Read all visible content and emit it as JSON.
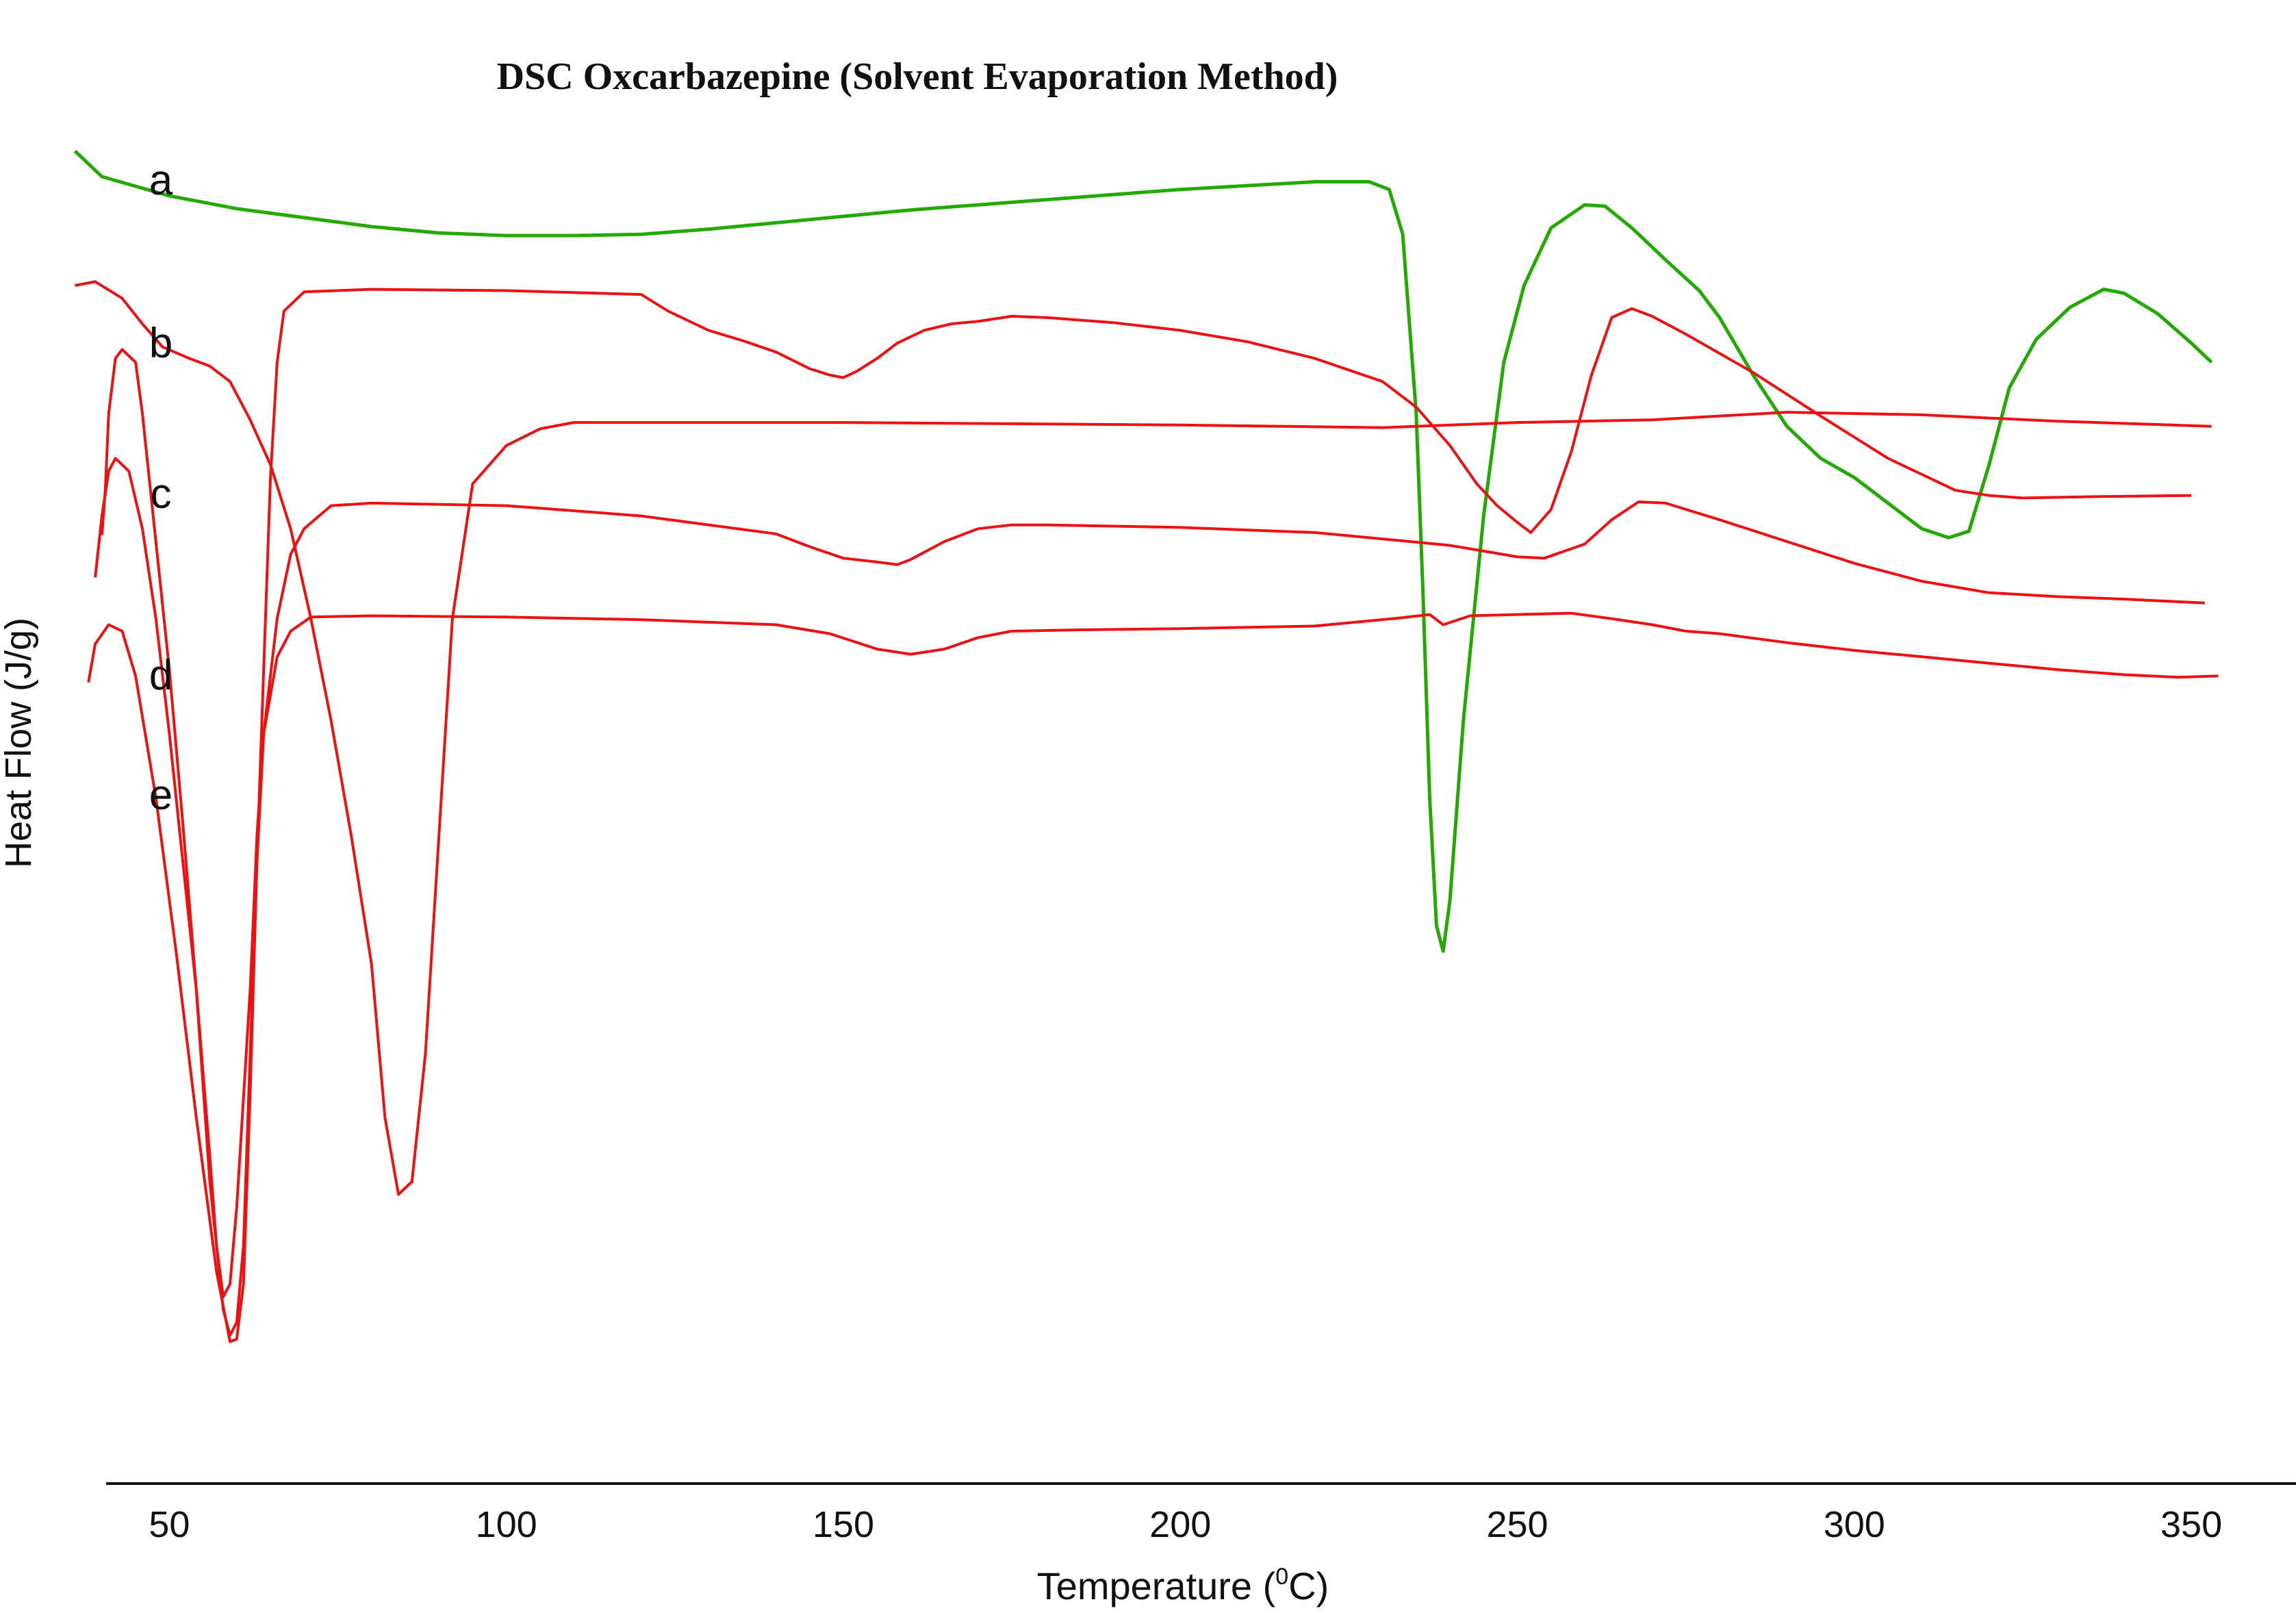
{
  "chart_data": {
    "type": "line",
    "title": "DSC Oxcarbazepine (Solvent Evaporation Method)",
    "xlabel": "Temperature (",
    "xlabel_sup": "0",
    "xlabel_end": "C)",
    "ylabel": "Heat Flow (J/g)",
    "xlim": [
      33,
      357
    ],
    "ylim": [
      0,
      100
    ],
    "x_ticks": [
      50,
      100,
      150,
      200,
      250,
      300,
      350
    ],
    "x_tick_labels": [
      "50",
      "100",
      "150",
      "200",
      "250",
      "300",
      "350"
    ],
    "grid": false,
    "legend": "none",
    "series": [
      {
        "name": "a",
        "color": "#22aa00",
        "points": [
          [
            36,
            100.5
          ],
          [
            40,
            98.5
          ],
          [
            50,
            97
          ],
          [
            60,
            96
          ],
          [
            70,
            95.3
          ],
          [
            80,
            94.6
          ],
          [
            90,
            94.1
          ],
          [
            100,
            93.9
          ],
          [
            110,
            93.9
          ],
          [
            120,
            94
          ],
          [
            130,
            94.4
          ],
          [
            140,
            94.9
          ],
          [
            150,
            95.4
          ],
          [
            160,
            95.9
          ],
          [
            170,
            96.3
          ],
          [
            180,
            96.7
          ],
          [
            190,
            97.1
          ],
          [
            200,
            97.5
          ],
          [
            210,
            97.8
          ],
          [
            220,
            98.1
          ],
          [
            228,
            98.1
          ],
          [
            231,
            97.5
          ],
          [
            233,
            94
          ],
          [
            235,
            80
          ],
          [
            236,
            66
          ],
          [
            237,
            50
          ],
          [
            238,
            40
          ],
          [
            239,
            38
          ],
          [
            240,
            42
          ],
          [
            242,
            56
          ],
          [
            245,
            72
          ],
          [
            248,
            84
          ],
          [
            251,
            90
          ],
          [
            255,
            94.5
          ],
          [
            260,
            96.3
          ],
          [
            263,
            96.2
          ],
          [
            267,
            94.5
          ],
          [
            272,
            92
          ],
          [
            277,
            89.6
          ],
          [
            280,
            87.5
          ],
          [
            285,
            83
          ],
          [
            290,
            79
          ],
          [
            295,
            76.5
          ],
          [
            300,
            75
          ],
          [
            305,
            73
          ],
          [
            310,
            71
          ],
          [
            314,
            70.3
          ],
          [
            317,
            70.8
          ],
          [
            320,
            76
          ],
          [
            323,
            82
          ],
          [
            327,
            85.8
          ],
          [
            332,
            88.3
          ],
          [
            337,
            89.7
          ],
          [
            340,
            89.4
          ],
          [
            345,
            87.8
          ],
          [
            350,
            85.5
          ],
          [
            353,
            84
          ]
        ]
      },
      {
        "name": "b",
        "color": "#ee1111",
        "points": [
          [
            36,
            90
          ],
          [
            39,
            90.3
          ],
          [
            43,
            89
          ],
          [
            46,
            87
          ],
          [
            49,
            85.2
          ],
          [
            53,
            84.3
          ],
          [
            56,
            83.7
          ],
          [
            59,
            82.5
          ],
          [
            62,
            79.5
          ],
          [
            65,
            76
          ],
          [
            68,
            71
          ],
          [
            71,
            64
          ],
          [
            74,
            56
          ],
          [
            77,
            47
          ],
          [
            80,
            37
          ],
          [
            82,
            25
          ],
          [
            84,
            19
          ],
          [
            86,
            20
          ],
          [
            88,
            30
          ],
          [
            90,
            47
          ],
          [
            92,
            64
          ],
          [
            95,
            74.5
          ],
          [
            100,
            77.5
          ],
          [
            105,
            78.8
          ],
          [
            110,
            79.3
          ],
          [
            150,
            79.3
          ],
          [
            200,
            79.1
          ],
          [
            230,
            78.9
          ],
          [
            250,
            79.3
          ],
          [
            270,
            79.5
          ],
          [
            290,
            80.1
          ],
          [
            310,
            79.9
          ],
          [
            330,
            79.4
          ],
          [
            353,
            79
          ]
        ]
      },
      {
        "name": "c",
        "color": "#ee1111",
        "points": [
          [
            40,
            70.5
          ],
          [
            40.5,
            74
          ],
          [
            41,
            80
          ],
          [
            42,
            84.3
          ],
          [
            43,
            85
          ],
          [
            45,
            84
          ],
          [
            46,
            80
          ],
          [
            48,
            70
          ],
          [
            50,
            60
          ],
          [
            52,
            48
          ],
          [
            54,
            35
          ],
          [
            56,
            20
          ],
          [
            58,
            10
          ],
          [
            59,
            8
          ],
          [
            60,
            9
          ],
          [
            61,
            15
          ],
          [
            62,
            30
          ],
          [
            63,
            45
          ],
          [
            64,
            60
          ],
          [
            65,
            75
          ],
          [
            66,
            84
          ],
          [
            67,
            88
          ],
          [
            70,
            89.5
          ],
          [
            80,
            89.7
          ],
          [
            100,
            89.6
          ],
          [
            120,
            89.3
          ],
          [
            124,
            88
          ],
          [
            130,
            86.5
          ],
          [
            135,
            85.7
          ],
          [
            140,
            84.8
          ],
          [
            145,
            83.5
          ],
          [
            148,
            83
          ],
          [
            150,
            82.8
          ],
          [
            152,
            83.3
          ],
          [
            155,
            84.3
          ],
          [
            158,
            85.5
          ],
          [
            162,
            86.5
          ],
          [
            166,
            87
          ],
          [
            170,
            87.2
          ],
          [
            175,
            87.6
          ],
          [
            180,
            87.5
          ],
          [
            190,
            87.1
          ],
          [
            200,
            86.5
          ],
          [
            210,
            85.6
          ],
          [
            220,
            84.3
          ],
          [
            230,
            82.5
          ],
          [
            235,
            80.5
          ],
          [
            240,
            77.5
          ],
          [
            244,
            74.5
          ],
          [
            247,
            72.8
          ],
          [
            250,
            71.5
          ],
          [
            252,
            70.7
          ],
          [
            255,
            72.5
          ],
          [
            258,
            77
          ],
          [
            261,
            83
          ],
          [
            264,
            87.5
          ],
          [
            267,
            88.2
          ],
          [
            270,
            87.6
          ],
          [
            275,
            86.2
          ],
          [
            285,
            83.2
          ],
          [
            295,
            79.8
          ],
          [
            305,
            76.5
          ],
          [
            315,
            74
          ],
          [
            320,
            73.6
          ],
          [
            325,
            73.4
          ],
          [
            335,
            73.5
          ],
          [
            350,
            73.6
          ]
        ]
      },
      {
        "name": "d",
        "color": "#ee1111",
        "points": [
          [
            39,
            67.2
          ],
          [
            40,
            72
          ],
          [
            41,
            75.5
          ],
          [
            42,
            76.5
          ],
          [
            44,
            75.5
          ],
          [
            46,
            71
          ],
          [
            48,
            64
          ],
          [
            50,
            55
          ],
          [
            52,
            45
          ],
          [
            54,
            35
          ],
          [
            56,
            22
          ],
          [
            57,
            15
          ],
          [
            58,
            11
          ],
          [
            59,
            12
          ],
          [
            60,
            18
          ],
          [
            62,
            35
          ],
          [
            63,
            47
          ],
          [
            64,
            55
          ],
          [
            66,
            64
          ],
          [
            68,
            69
          ],
          [
            70,
            71
          ],
          [
            74,
            72.8
          ],
          [
            80,
            73
          ],
          [
            100,
            72.8
          ],
          [
            120,
            72
          ],
          [
            140,
            70.6
          ],
          [
            145,
            69.6
          ],
          [
            150,
            68.7
          ],
          [
            155,
            68.4
          ],
          [
            158,
            68.2
          ],
          [
            160,
            68.6
          ],
          [
            165,
            70
          ],
          [
            170,
            71
          ],
          [
            175,
            71.3
          ],
          [
            180,
            71.3
          ],
          [
            200,
            71.1
          ],
          [
            220,
            70.7
          ],
          [
            240,
            69.7
          ],
          [
            250,
            68.8
          ],
          [
            254,
            68.7
          ],
          [
            260,
            69.8
          ],
          [
            264,
            71.7
          ],
          [
            268,
            73.1
          ],
          [
            272,
            73
          ],
          [
            280,
            71.7
          ],
          [
            290,
            70
          ],
          [
            300,
            68.3
          ],
          [
            310,
            66.9
          ],
          [
            320,
            66
          ],
          [
            330,
            65.7
          ],
          [
            340,
            65.5
          ],
          [
            352,
            65.2
          ]
        ]
      },
      {
        "name": "e",
        "color": "#ee1111",
        "points": [
          [
            38,
            59
          ],
          [
            39,
            62
          ],
          [
            41,
            63.5
          ],
          [
            43,
            63
          ],
          [
            45,
            59.5
          ],
          [
            48,
            50
          ],
          [
            51,
            38
          ],
          [
            54,
            25
          ],
          [
            57,
            13
          ],
          [
            59,
            7.5
          ],
          [
            60,
            7.7
          ],
          [
            61,
            12
          ],
          [
            62,
            27
          ],
          [
            63,
            45
          ],
          [
            64,
            55
          ],
          [
            66,
            61
          ],
          [
            68,
            63
          ],
          [
            71,
            64.1
          ],
          [
            80,
            64.2
          ],
          [
            100,
            64.1
          ],
          [
            120,
            63.9
          ],
          [
            140,
            63.5
          ],
          [
            148,
            62.8
          ],
          [
            155,
            61.6
          ],
          [
            160,
            61.2
          ],
          [
            165,
            61.6
          ],
          [
            170,
            62.5
          ],
          [
            175,
            63
          ],
          [
            185,
            63.1
          ],
          [
            200,
            63.2
          ],
          [
            220,
            63.4
          ],
          [
            232,
            64
          ],
          [
            237,
            64.3
          ],
          [
            239,
            63.5
          ],
          [
            243,
            64.2
          ],
          [
            250,
            64.3
          ],
          [
            258,
            64.4
          ],
          [
            265,
            63.9
          ],
          [
            270,
            63.5
          ],
          [
            275,
            63
          ],
          [
            280,
            62.8
          ],
          [
            290,
            62.1
          ],
          [
            300,
            61.5
          ],
          [
            310,
            61
          ],
          [
            320,
            60.5
          ],
          [
            330,
            60
          ],
          [
            340,
            59.6
          ],
          [
            348,
            59.4
          ],
          [
            354,
            59.5
          ]
        ]
      }
    ]
  }
}
